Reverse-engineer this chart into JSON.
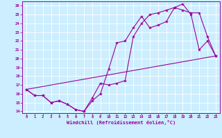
{
  "xlabel": "Windchill (Refroidissement éolien,°C)",
  "bg_color": "#cceeff",
  "line_color": "#990099",
  "xlim": [
    -0.5,
    23.5
  ],
  "ylim": [
    13.8,
    26.5
  ],
  "yticks": [
    14,
    15,
    16,
    17,
    18,
    19,
    20,
    21,
    22,
    23,
    24,
    25,
    26
  ],
  "xticks": [
    0,
    1,
    2,
    3,
    4,
    5,
    6,
    7,
    8,
    9,
    10,
    11,
    12,
    13,
    14,
    15,
    16,
    17,
    18,
    19,
    20,
    21,
    22,
    23
  ],
  "line1_x": [
    0,
    1,
    2,
    3,
    4,
    5,
    6,
    7,
    8,
    9,
    10,
    11,
    12,
    13,
    14,
    15,
    16,
    17,
    18,
    19,
    20,
    21,
    22,
    23
  ],
  "line1_y": [
    16.5,
    15.8,
    15.8,
    15.0,
    15.2,
    14.8,
    14.2,
    14.0,
    15.2,
    16.0,
    18.8,
    21.8,
    22.0,
    23.5,
    24.8,
    23.5,
    23.8,
    24.2,
    25.8,
    26.2,
    25.0,
    21.0,
    22.0,
    20.3
  ],
  "line2_x": [
    0,
    1,
    2,
    3,
    4,
    5,
    6,
    7,
    8,
    9,
    10,
    11,
    12,
    13,
    14,
    15,
    16,
    17,
    18,
    19,
    20,
    21,
    22,
    23
  ],
  "line2_y": [
    16.5,
    15.8,
    15.8,
    15.0,
    15.2,
    14.8,
    14.2,
    14.0,
    15.5,
    17.2,
    17.0,
    17.2,
    17.5,
    22.5,
    24.0,
    25.0,
    25.2,
    25.5,
    25.8,
    25.5,
    25.2,
    25.2,
    22.5,
    20.3
  ],
  "line3_x": [
    0,
    23
  ],
  "line3_y": [
    16.5,
    20.3
  ]
}
